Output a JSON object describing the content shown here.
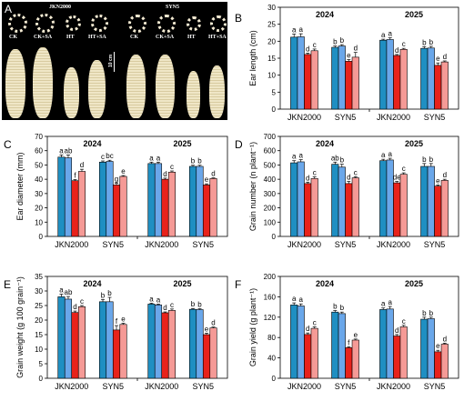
{
  "photo_panel": {
    "letter": "A",
    "cultivar_left": "JKN2000",
    "cultivar_right": "SYN5",
    "treatments": [
      "CK",
      "CK+SA",
      "HT",
      "HT+SA"
    ],
    "scale_bar": "10 cm"
  },
  "colors": {
    "CK": "#1f8fc2",
    "CK+SA": "#6aa7ea",
    "HT": "#e8221b",
    "HT+SA": "#f59a96"
  },
  "chart_data": [
    {
      "type": "bar",
      "letter": "B",
      "ylabel": "Ear length (cm)",
      "ylim": [
        0,
        30
      ],
      "ticks": [
        0,
        5,
        10,
        15,
        20,
        25,
        30
      ],
      "years": [
        "2024",
        "2025"
      ],
      "categories": [
        "JKN2000",
        "SYN5"
      ],
      "series_order": [
        "CK",
        "CK+SA",
        "HT",
        "HT+SA"
      ],
      "values": [
        [
          [
            21.2,
            21.3,
            16.1,
            17.2
          ],
          [
            18.2,
            18.6,
            14.1,
            15.3
          ]
        ],
        [
          [
            20.3,
            20.5,
            15.8,
            17.6
          ],
          [
            17.9,
            18.0,
            12.9,
            13.9
          ]
        ]
      ],
      "errors": [
        [
          [
            0.9,
            0.9,
            0.4,
            0.5
          ],
          [
            0.4,
            0.4,
            0.5,
            1.4
          ]
        ],
        [
          [
            0.3,
            0.5,
            0.3,
            0.3
          ],
          [
            0.5,
            0.5,
            0.7,
            0.3
          ]
        ]
      ],
      "letters": [
        [
          [
            "a",
            "a",
            "d",
            "c"
          ],
          [
            "b",
            "b",
            "e",
            "d"
          ]
        ],
        [
          [
            "a",
            "a",
            "d",
            "c"
          ],
          [
            "b",
            "b",
            "e",
            "d"
          ]
        ]
      ]
    },
    {
      "type": "bar",
      "letter": "C",
      "ylabel": "Ear diameter (mm)",
      "ylim": [
        0,
        70
      ],
      "ticks": [
        0,
        10,
        20,
        30,
        40,
        50,
        60,
        70
      ],
      "years": [
        "2024",
        "2025"
      ],
      "categories": [
        "JKN2000",
        "SYN5"
      ],
      "series_order": [
        "CK",
        "CK+SA",
        "HT",
        "HT+SA"
      ],
      "values": [
        [
          [
            55.5,
            55.0,
            39.0,
            45.5
          ],
          [
            52.0,
            52.5,
            36.0,
            42.0
          ]
        ],
        [
          [
            51.0,
            51.0,
            40.0,
            45.0
          ],
          [
            49.0,
            49.0,
            36.0,
            40.5
          ]
        ]
      ],
      "errors": [
        [
          [
            1.5,
            2.0,
            0.8,
            1.5
          ],
          [
            0.8,
            0.8,
            1.2,
            0.6
          ]
        ],
        [
          [
            1.0,
            1.0,
            0.8,
            0.8
          ],
          [
            0.8,
            0.8,
            0.8,
            0.5
          ]
        ]
      ],
      "letters": [
        [
          [
            "a",
            "ab",
            "f",
            "d"
          ],
          [
            "c",
            "bc",
            "g",
            "e"
          ]
        ],
        [
          [
            "a",
            "a",
            "d",
            "c"
          ],
          [
            "b",
            "b",
            "e",
            "d"
          ]
        ]
      ]
    },
    {
      "type": "bar",
      "letter": "D",
      "ylabel": "Grain number (n plant⁻¹)",
      "ylim": [
        0,
        700
      ],
      "ticks": [
        0,
        100,
        200,
        300,
        400,
        500,
        600,
        700
      ],
      "years": [
        "2024",
        "2025"
      ],
      "categories": [
        "JKN2000",
        "SYN5"
      ],
      "series_order": [
        "CK",
        "CK+SA",
        "HT",
        "HT+SA"
      ],
      "values": [
        [
          [
            515,
            522,
            370,
            405
          ],
          [
            505,
            485,
            370,
            410
          ]
        ],
        [
          [
            530,
            535,
            375,
            435
          ],
          [
            490,
            490,
            352,
            392
          ]
        ]
      ],
      "errors": [
        [
          [
            15,
            15,
            10,
            12
          ],
          [
            15,
            20,
            15,
            8
          ]
        ],
        [
          [
            10,
            12,
            10,
            10
          ],
          [
            20,
            20,
            8,
            8
          ]
        ]
      ],
      "letters": [
        [
          [
            "a",
            "a",
            "d",
            "c"
          ],
          [
            "ab",
            "b",
            "d",
            "c"
          ]
        ],
        [
          [
            "a",
            "a",
            "de",
            "c"
          ],
          [
            "b",
            "b",
            "e",
            "d"
          ]
        ]
      ]
    },
    {
      "type": "bar",
      "letter": "E",
      "ylabel": "Grain weight (g 100 grain⁻¹)",
      "ylim": [
        0,
        35
      ],
      "ticks": [
        0,
        5,
        10,
        15,
        20,
        25,
        30,
        35
      ],
      "years": [
        "2024",
        "2025"
      ],
      "categories": [
        "JKN2000",
        "SYN5"
      ],
      "series_order": [
        "CK",
        "CK+SA",
        "HT",
        "HT+SA"
      ],
      "values": [
        [
          [
            28.0,
            27.2,
            22.6,
            24.6
          ],
          [
            26.3,
            26.3,
            16.6,
            18.5
          ]
        ],
        [
          [
            25.5,
            25.2,
            22.5,
            23.3
          ],
          [
            23.7,
            23.6,
            15.0,
            17.3
          ]
        ]
      ],
      "errors": [
        [
          [
            0.9,
            0.9,
            0.5,
            0.4
          ],
          [
            0.8,
            1.5,
            1.5,
            0.4
          ]
        ],
        [
          [
            0.3,
            0.3,
            0.3,
            0.5
          ],
          [
            0.3,
            0.3,
            0.5,
            0.3
          ]
        ]
      ],
      "letters": [
        [
          [
            "a",
            "ab",
            "d",
            "c"
          ],
          [
            "b",
            "b",
            "f",
            "e"
          ]
        ],
        [
          [
            "a",
            "a",
            "d",
            "c"
          ],
          [
            "b",
            "b",
            "e",
            "d"
          ]
        ]
      ]
    },
    {
      "type": "bar",
      "letter": "F",
      "ylabel": "Grain yield (g plant⁻¹)",
      "ylim": [
        0,
        200
      ],
      "ticks": [
        0,
        40,
        80,
        120,
        160,
        200
      ],
      "years": [
        "2024",
        "2025"
      ],
      "categories": [
        "JKN2000",
        "SYN5"
      ],
      "series_order": [
        "CK",
        "CK+SA",
        "HT",
        "HT+SA"
      ],
      "values": [
        [
          [
            144,
            142,
            86,
            98
          ],
          [
            130,
            127,
            60,
            75
          ]
        ],
        [
          [
            135,
            136,
            83,
            101
          ],
          [
            116,
            117,
            52,
            67
          ]
        ]
      ],
      "errors": [
        [
          [
            4,
            4,
            3,
            3
          ],
          [
            3,
            3,
            2,
            2
          ]
        ],
        [
          [
            3,
            5,
            3,
            3
          ],
          [
            4,
            3,
            3,
            2
          ]
        ]
      ],
      "letters": [
        [
          [
            "a",
            "a",
            "d",
            "c"
          ],
          [
            "b",
            "b",
            "f",
            "e"
          ]
        ],
        [
          [
            "a",
            "a",
            "d",
            "c"
          ],
          [
            "b",
            "b",
            "e",
            "d"
          ]
        ]
      ]
    }
  ]
}
